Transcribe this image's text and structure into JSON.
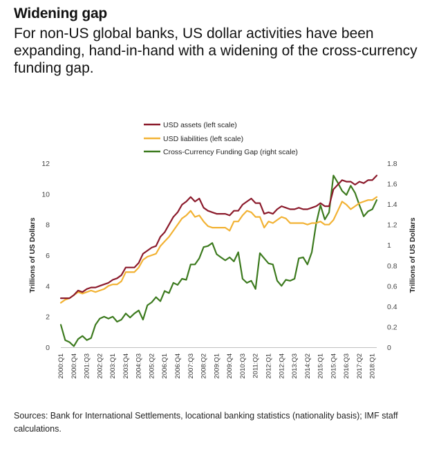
{
  "header": {
    "title": "Widening gap",
    "subtitle": "For non-US global banks, US dollar activities have been expanding, hand-in-hand with a widening of the cross-currency funding gap."
  },
  "footer": {
    "sources": "Sources: Bank for International Settlements, locational banking statistics (nationality basis); IMF staff calculations."
  },
  "chart_data": {
    "type": "line",
    "xlabel": "",
    "ylabel": "Trillions of US Dollars",
    "y2label": "Trillions of US Dollars",
    "ylim": [
      0,
      12
    ],
    "y2lim": [
      0,
      1.8
    ],
    "yticks": [
      0,
      2,
      4,
      6,
      8,
      10,
      12
    ],
    "y2ticks": [
      "0",
      "0.2",
      "0.4",
      "0.6",
      "0.8",
      "1",
      "1.2",
      "1.4",
      "1.6",
      "1.8"
    ],
    "tick_labels": [
      "2000:Q1",
      "2000:Q4",
      "2001:Q3",
      "2002:Q2",
      "2003:Q1",
      "2003:Q4",
      "2004:Q3",
      "2005:Q2",
      "2006:Q1",
      "2006:Q4",
      "2007:Q3",
      "2008:Q2",
      "2009:Q1",
      "2009:Q4",
      "2010:Q3",
      "2011:Q2",
      "2012:Q1",
      "2012:Q4",
      "2013:Q3",
      "2014:Q2",
      "2015:Q1",
      "2015:Q4",
      "2016:Q3",
      "2017:Q2",
      "2018:Q1"
    ],
    "x_start": "2000:Q1",
    "legend_position": "top-center",
    "series": [
      {
        "name": "USD assets (left scale)",
        "axis": "left",
        "color": "#8b1a2b",
        "values": [
          3.2,
          3.2,
          3.2,
          3.4,
          3.7,
          3.6,
          3.8,
          3.9,
          3.9,
          4.0,
          4.1,
          4.2,
          4.4,
          4.5,
          4.7,
          5.2,
          5.2,
          5.2,
          5.5,
          6.1,
          6.3,
          6.5,
          6.6,
          7.2,
          7.5,
          8.0,
          8.5,
          8.8,
          9.3,
          9.5,
          9.8,
          9.5,
          9.7,
          9.1,
          8.9,
          8.8,
          8.7,
          8.7,
          8.7,
          8.6,
          8.9,
          8.9,
          9.3,
          9.5,
          9.7,
          9.4,
          9.4,
          8.7,
          8.8,
          8.7,
          9.0,
          9.2,
          9.1,
          9.0,
          9.0,
          9.1,
          9.0,
          9.0,
          9.1,
          9.2,
          9.4,
          9.2,
          9.2,
          10.3,
          10.6,
          10.9,
          10.8,
          10.8,
          10.6,
          10.8,
          10.7,
          10.9,
          10.9,
          11.2
        ]
      },
      {
        "name": "USD liabilities (left scale)",
        "axis": "left",
        "color": "#f2b233",
        "values": [
          2.9,
          3.1,
          3.2,
          3.4,
          3.6,
          3.5,
          3.6,
          3.7,
          3.6,
          3.7,
          3.8,
          4.0,
          4.1,
          4.1,
          4.3,
          4.9,
          4.9,
          4.9,
          5.2,
          5.7,
          5.9,
          6.0,
          6.1,
          6.6,
          6.9,
          7.2,
          7.6,
          8.0,
          8.4,
          8.6,
          8.9,
          8.5,
          8.6,
          8.2,
          7.9,
          7.8,
          7.8,
          7.8,
          7.8,
          7.6,
          8.2,
          8.2,
          8.6,
          8.9,
          8.8,
          8.5,
          8.5,
          7.8,
          8.2,
          8.1,
          8.3,
          8.5,
          8.4,
          8.1,
          8.1,
          8.1,
          8.1,
          8.0,
          8.1,
          8.1,
          8.2,
          8.0,
          8.0,
          8.3,
          8.9,
          9.5,
          9.3,
          9.0,
          9.2,
          9.4,
          9.5,
          9.6,
          9.6,
          9.8
        ]
      },
      {
        "name": "Cross-Currency Funding Gap (right scale)",
        "axis": "right",
        "color": "#3c7a1e",
        "values": [
          0.22,
          0.07,
          0.05,
          0.01,
          0.08,
          0.11,
          0.07,
          0.09,
          0.22,
          0.28,
          0.3,
          0.28,
          0.3,
          0.25,
          0.27,
          0.33,
          0.29,
          0.33,
          0.36,
          0.27,
          0.41,
          0.44,
          0.49,
          0.45,
          0.55,
          0.53,
          0.63,
          0.61,
          0.67,
          0.66,
          0.81,
          0.81,
          0.87,
          0.98,
          0.99,
          1.02,
          0.91,
          0.88,
          0.85,
          0.88,
          0.84,
          0.93,
          0.67,
          0.63,
          0.65,
          0.57,
          0.92,
          0.87,
          0.82,
          0.81,
          0.65,
          0.6,
          0.66,
          0.65,
          0.67,
          0.87,
          0.88,
          0.81,
          0.93,
          1.21,
          1.39,
          1.25,
          1.32,
          1.68,
          1.61,
          1.53,
          1.49,
          1.58,
          1.51,
          1.39,
          1.28,
          1.33,
          1.35,
          1.44
        ]
      }
    ]
  }
}
